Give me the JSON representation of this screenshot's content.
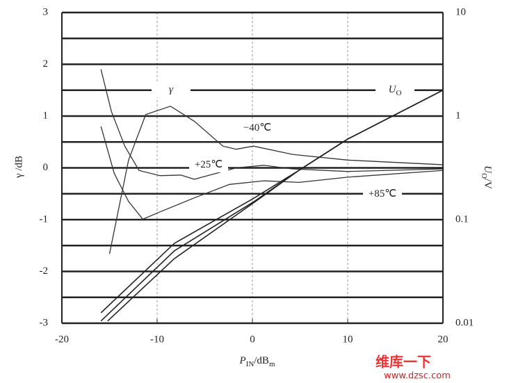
{
  "chart_data": {
    "type": "line",
    "xlim": [
      -20,
      20
    ],
    "xticks": [
      -20,
      -10,
      0,
      10,
      20
    ],
    "ylim": [
      -3,
      3
    ],
    "yticks": [
      -3,
      -2,
      -1,
      0,
      1,
      2,
      3
    ],
    "yminorticks": [
      -2.5,
      -1.5,
      -0.5,
      0.5,
      1.5,
      2.5
    ],
    "y2lim": [
      0.01,
      10
    ],
    "y2ticks": [
      0.01,
      0.1,
      1,
      10
    ],
    "y2log": true,
    "xgrid": [
      -10,
      0,
      10
    ],
    "x_label": {
      "main": "P",
      "sub": "IN",
      "rest": "/dB",
      "sub2": "m"
    },
    "y_label": "γ /dB",
    "y2_label": {
      "main": "U",
      "sub": "O",
      "rest": "/V"
    },
    "annotations": [
      {
        "text": "γ"
      },
      {
        "text": "U",
        "sub": "O"
      }
    ],
    "series": [
      {
        "name": "−40℃",
        "color": "#333",
        "x": [
          -15,
          -13,
          -11.2,
          -8.6,
          -6.1,
          -3.1,
          -1.7,
          0.1,
          4.2,
          10,
          20
        ],
        "values": [
          -1.66,
          0.15,
          1.03,
          1.19,
          0.9,
          0.42,
          0.36,
          0.42,
          0.26,
          0.15,
          0.06
        ]
      },
      {
        "name": "+25℃",
        "color": "#333",
        "x": [
          -15.9,
          -14.8,
          -13.4,
          -11.9,
          -9.7,
          -7.5,
          -6.1,
          -3.9,
          -1.7,
          1.2,
          4.2,
          10,
          20
        ],
        "values": [
          1.9,
          1.09,
          0.42,
          -0.05,
          -0.15,
          -0.14,
          -0.22,
          -0.11,
          0.0,
          0.05,
          -0.02,
          -0.07,
          -0.02
        ]
      },
      {
        "name": "+85℃",
        "color": "#333",
        "x": [
          -15.9,
          -14.5,
          -13,
          -11.5,
          -9.7,
          -6.1,
          -2.4,
          1.2,
          4.9,
          10,
          20
        ],
        "values": [
          0.8,
          -0.11,
          -0.65,
          -0.99,
          -0.85,
          -0.58,
          -0.32,
          -0.25,
          -0.28,
          -0.18,
          -0.05
        ]
      },
      {
        "axis": "y2",
        "color": "#222",
        "x": [
          -15.9,
          -8.2,
          0.1,
          4.9,
          10,
          20
        ],
        "values": [
          0.0126,
          0.059,
          0.16,
          0.3,
          0.6,
          1.78
        ]
      },
      {
        "axis": "y2",
        "color": "#222",
        "x": [
          -15.9,
          -8.2,
          0.1,
          4.9,
          10,
          20
        ],
        "values": [
          0.0105,
          0.05,
          0.148,
          0.3,
          0.6,
          1.78
        ]
      },
      {
        "axis": "y2",
        "color": "#222",
        "x": [
          -15.2,
          -8.2,
          0.1,
          4.9,
          10,
          20
        ],
        "values": [
          0.0105,
          0.042,
          0.145,
          0.3,
          0.6,
          1.78
        ]
      }
    ]
  },
  "watermark": {
    "brand": "维库一下",
    "url": "www.dzsc.com"
  }
}
